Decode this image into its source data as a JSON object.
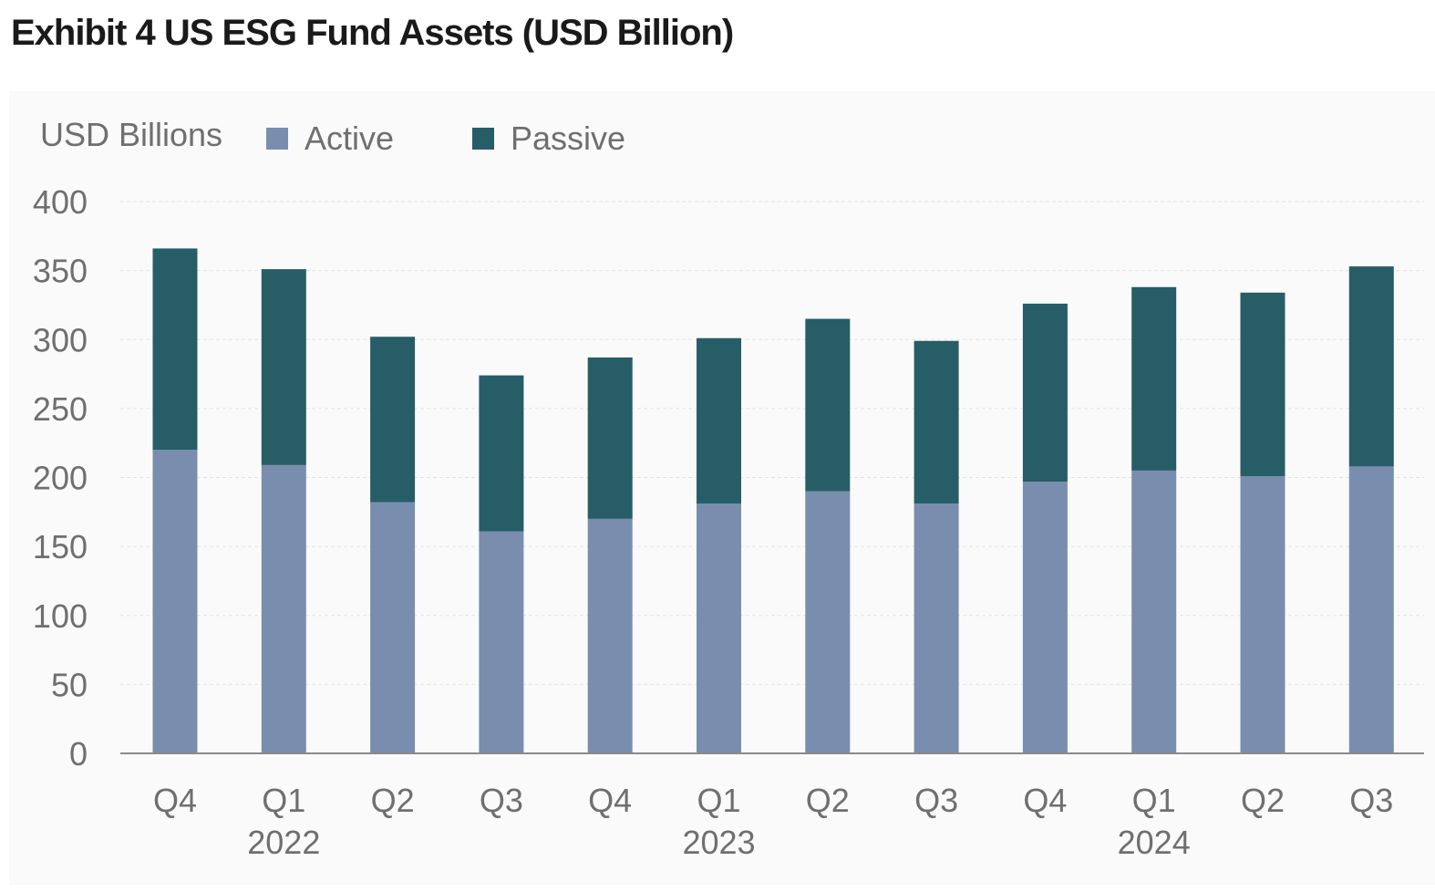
{
  "title": "Exhibit 4 US ESG Fund Assets (USD Billion)",
  "colors": {
    "active": "#798daf",
    "passive": "#275d66",
    "grid": "#e3e3e3",
    "axis": "#8a8a8a",
    "text": "#6f6f6f"
  },
  "chart_data": {
    "type": "bar",
    "stacked": true,
    "ylabel": "USD Billions",
    "ylim": [
      0,
      400
    ],
    "yticks": [
      0,
      50,
      100,
      150,
      200,
      250,
      300,
      350,
      400
    ],
    "grid": true,
    "legend_position": "top-left",
    "categories": [
      "Q4",
      "Q1",
      "Q2",
      "Q3",
      "Q4",
      "Q1",
      "Q2",
      "Q3",
      "Q4",
      "Q1",
      "Q2",
      "Q3"
    ],
    "year_labels": [
      {
        "label": "2022",
        "category_index": 1
      },
      {
        "label": "2023",
        "category_index": 5
      },
      {
        "label": "2024",
        "category_index": 9
      }
    ],
    "series": [
      {
        "name": "Active",
        "values": [
          220,
          209,
          182,
          161,
          170,
          181,
          190,
          181,
          197,
          205,
          201,
          208
        ]
      },
      {
        "name": "Passive",
        "values": [
          146,
          142,
          120,
          113,
          117,
          120,
          125,
          118,
          129,
          133,
          133,
          145
        ]
      }
    ]
  }
}
